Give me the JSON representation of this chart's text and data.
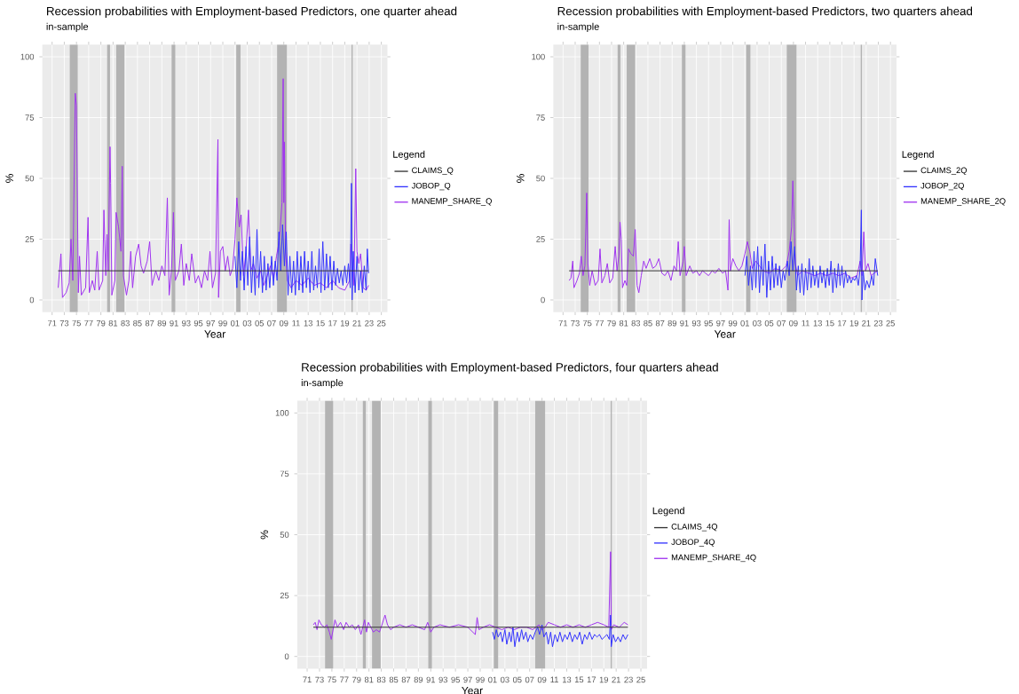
{
  "chart_data": [
    {
      "type": "line",
      "title": "Recession probabilities with Employment-based Predictors, one quarter ahead",
      "subtitle": "in-sample",
      "xlabel": "Year",
      "ylabel": "%",
      "legend_title": "Legend",
      "legend": "right",
      "grid": true,
      "xlim": [
        1969.4,
        2026
      ],
      "ylim": [
        -5,
        105
      ],
      "yticks": [
        0,
        25,
        50,
        75,
        100
      ],
      "xticks": [
        {
          "value": 1971,
          "label": "71"
        },
        {
          "value": 1973,
          "label": "73"
        },
        {
          "value": 1975,
          "label": "75"
        },
        {
          "value": 1977,
          "label": "77"
        },
        {
          "value": 1979,
          "label": "79"
        },
        {
          "value": 1981,
          "label": "81"
        },
        {
          "value": 1983,
          "label": "83"
        },
        {
          "value": 1985,
          "label": "85"
        },
        {
          "value": 1987,
          "label": "87"
        },
        {
          "value": 1989,
          "label": "89"
        },
        {
          "value": 1991,
          "label": "91"
        },
        {
          "value": 1993,
          "label": "93"
        },
        {
          "value": 1995,
          "label": "95"
        },
        {
          "value": 1997,
          "label": "97"
        },
        {
          "value": 1999,
          "label": "99"
        },
        {
          "value": 2001,
          "label": "01"
        },
        {
          "value": 2003,
          "label": "03"
        },
        {
          "value": 2005,
          "label": "05"
        },
        {
          "value": 2007,
          "label": "07"
        },
        {
          "value": 2009,
          "label": "09"
        },
        {
          "value": 2011,
          "label": "11"
        },
        {
          "value": 2013,
          "label": "13"
        },
        {
          "value": 2015,
          "label": "15"
        },
        {
          "value": 2017,
          "label": "17"
        },
        {
          "value": 2019,
          "label": "19"
        },
        {
          "value": 2021,
          "label": "21"
        },
        {
          "value": 2023,
          "label": "23"
        },
        {
          "value": 2025,
          "label": "25"
        }
      ],
      "bands": [
        {
          "axis": "x",
          "from": 1973.9,
          "to": 1975.2
        },
        {
          "axis": "x",
          "from": 1980.0,
          "to": 1980.5
        },
        {
          "axis": "x",
          "from": 1981.5,
          "to": 1982.9
        },
        {
          "axis": "x",
          "from": 1990.6,
          "to": 1991.2
        },
        {
          "axis": "x",
          "from": 2001.2,
          "to": 2001.9
        },
        {
          "axis": "x",
          "from": 2007.9,
          "to": 2009.5
        },
        {
          "axis": "x",
          "from": 2020.1,
          "to": 2020.3
        }
      ],
      "series": [
        {
          "name": "CLAIMS_Q",
          "color": "#333333",
          "x": [
            1972.0,
            2022.9
          ],
          "values": [
            12,
            12
          ]
        },
        {
          "name": "JOBOP_Q",
          "color": "#3333ff",
          "x": [
            2001.0,
            2001.3,
            2001.6,
            2001.9,
            2002.2,
            2002.5,
            2002.8,
            2003.1,
            2003.4,
            2003.7,
            2004.0,
            2004.3,
            2004.6,
            2004.9,
            2005.2,
            2005.5,
            2005.8,
            2006.1,
            2006.4,
            2006.7,
            2007.0,
            2007.3,
            2007.6,
            2007.9,
            2008.2,
            2008.5,
            2008.8,
            2009.1,
            2009.4,
            2009.7,
            2010.0,
            2010.3,
            2010.6,
            2010.9,
            2011.2,
            2011.5,
            2011.8,
            2012.1,
            2012.4,
            2012.7,
            2013.0,
            2013.3,
            2013.6,
            2013.9,
            2014.2,
            2014.5,
            2014.8,
            2015.1,
            2015.4,
            2015.7,
            2016.0,
            2016.3,
            2016.6,
            2016.9,
            2017.2,
            2017.5,
            2017.8,
            2018.1,
            2018.4,
            2018.7,
            2019.0,
            2019.3,
            2019.6,
            2019.9,
            2020.1,
            2020.2,
            2020.4,
            2020.7,
            2021.0,
            2021.3,
            2021.6,
            2021.9,
            2022.2,
            2022.5,
            2022.7,
            2022.9
          ],
          "values": [
            18,
            5,
            24,
            8,
            20,
            4,
            22,
            6,
            26,
            3,
            18,
            2,
            29,
            5,
            20,
            3,
            18,
            4,
            15,
            5,
            18,
            6,
            16,
            8,
            28,
            12,
            31,
            14,
            28,
            2,
            18,
            3,
            16,
            2,
            20,
            4,
            18,
            3,
            20,
            5,
            16,
            3,
            20,
            4,
            14,
            5,
            21,
            3,
            24,
            4,
            19,
            5,
            18,
            4,
            16,
            6,
            13,
            7,
            12,
            6,
            14,
            7,
            15,
            5,
            48,
            0,
            20,
            3,
            18,
            4,
            12,
            3,
            14,
            4,
            21,
            11
          ]
        },
        {
          "name": "MANEMP_SHARE_Q",
          "color": "#a033f0",
          "x": [
            1972.0,
            1972.45,
            1972.7,
            1973.3,
            1973.8,
            1974.1,
            1974.4,
            1974.8,
            1975.0,
            1975.3,
            1975.5,
            1975.8,
            1976.5,
            1976.9,
            1977.1,
            1977.6,
            1978.0,
            1978.4,
            1978.7,
            1979.3,
            1979.5,
            1979.8,
            1980.0,
            1980.2,
            1980.5,
            1980.6,
            1980.8,
            1981.3,
            1981.5,
            1981.9,
            1982.3,
            1982.5,
            1982.7,
            1983.2,
            1983.6,
            1983.9,
            1984.2,
            1984.7,
            1985.2,
            1985.6,
            1986.0,
            1986.6,
            1987.0,
            1987.4,
            1988.0,
            1988.5,
            1989.0,
            1989.5,
            1989.9,
            1990.2,
            1990.6,
            1990.9,
            1991.2,
            1991.8,
            1992.2,
            1992.6,
            1993.0,
            1993.5,
            1993.9,
            1994.5,
            1995.0,
            1995.5,
            1996.0,
            1996.5,
            1996.9,
            1997.3,
            1997.8,
            1998.2,
            1998.3,
            1998.6,
            1999.0,
            1999.4,
            1999.8,
            2000.2,
            2000.6,
            2001.0,
            2001.3,
            2001.7,
            2002.0,
            2002.4,
            2002.8,
            2003.2,
            2003.6,
            2004.0,
            2004.6,
            2005.2,
            2005.7,
            2006.3,
            2006.8,
            2007.3,
            2007.8,
            2008.3,
            2008.7,
            2008.9,
            2009.0,
            2009.1,
            2009.3,
            2009.6,
            2010.2,
            2011.0,
            2012.0,
            2013.0,
            2014.0,
            2015.0,
            2016.0,
            2017.0,
            2018.0,
            2019.0,
            2019.8,
            2020.0,
            2020.2,
            2020.5,
            2020.8,
            2021.0,
            2021.3,
            2021.6,
            2022.0,
            2022.5,
            2022.9
          ],
          "values": [
            5,
            19,
            1,
            3,
            7,
            25,
            8,
            85,
            80,
            3,
            18,
            2,
            5,
            34,
            3,
            8,
            4,
            20,
            4,
            8,
            37,
            10,
            27,
            12,
            63,
            48,
            2,
            8,
            36,
            30,
            20,
            55,
            10,
            2,
            8,
            20,
            5,
            18,
            23,
            14,
            11,
            16,
            24,
            6,
            12,
            8,
            14,
            10,
            42,
            2,
            13,
            36,
            8,
            12,
            23,
            6,
            15,
            8,
            19,
            7,
            10,
            5,
            12,
            8,
            20,
            5,
            11,
            66,
            1,
            20,
            22,
            12,
            18,
            10,
            13,
            25,
            42,
            30,
            35,
            10,
            20,
            37,
            12,
            15,
            9,
            12,
            6,
            10,
            14,
            9,
            18,
            25,
            40,
            91,
            40,
            65,
            20,
            8,
            5,
            8,
            6,
            9,
            6,
            7,
            5,
            8,
            5,
            4,
            8,
            23,
            18,
            6,
            54,
            20,
            15,
            19,
            5,
            4,
            6
          ]
        }
      ]
    },
    {
      "type": "line",
      "title": "Recession probabilities with Employment-based Predictors, two quarters ahead",
      "subtitle": "in-sample",
      "xlabel": "Year",
      "ylabel": "%",
      "legend_title": "Legend",
      "legend": "right",
      "grid": true,
      "xlim": [
        1969.4,
        2026
      ],
      "ylim": [
        -5,
        105
      ],
      "yticks": [
        0,
        25,
        50,
        75,
        100
      ],
      "xticks": [
        {
          "value": 1971,
          "label": "71"
        },
        {
          "value": 1973,
          "label": "73"
        },
        {
          "value": 1975,
          "label": "75"
        },
        {
          "value": 1977,
          "label": "77"
        },
        {
          "value": 1979,
          "label": "79"
        },
        {
          "value": 1981,
          "label": "81"
        },
        {
          "value": 1983,
          "label": "83"
        },
        {
          "value": 1985,
          "label": "85"
        },
        {
          "value": 1987,
          "label": "87"
        },
        {
          "value": 1989,
          "label": "89"
        },
        {
          "value": 1991,
          "label": "91"
        },
        {
          "value": 1993,
          "label": "93"
        },
        {
          "value": 1995,
          "label": "95"
        },
        {
          "value": 1997,
          "label": "97"
        },
        {
          "value": 1999,
          "label": "99"
        },
        {
          "value": 2001,
          "label": "01"
        },
        {
          "value": 2003,
          "label": "03"
        },
        {
          "value": 2005,
          "label": "05"
        },
        {
          "value": 2007,
          "label": "07"
        },
        {
          "value": 2009,
          "label": "09"
        },
        {
          "value": 2011,
          "label": "11"
        },
        {
          "value": 2013,
          "label": "13"
        },
        {
          "value": 2015,
          "label": "15"
        },
        {
          "value": 2017,
          "label": "17"
        },
        {
          "value": 2019,
          "label": "19"
        },
        {
          "value": 2021,
          "label": "21"
        },
        {
          "value": 2023,
          "label": "23"
        },
        {
          "value": 2025,
          "label": "25"
        }
      ],
      "bands": [
        {
          "axis": "x",
          "from": 1973.9,
          "to": 1975.2
        },
        {
          "axis": "x",
          "from": 1980.0,
          "to": 1980.5
        },
        {
          "axis": "x",
          "from": 1981.5,
          "to": 1982.9
        },
        {
          "axis": "x",
          "from": 1990.6,
          "to": 1991.2
        },
        {
          "axis": "x",
          "from": 2001.2,
          "to": 2001.9
        },
        {
          "axis": "x",
          "from": 2007.9,
          "to": 2009.5
        },
        {
          "axis": "x",
          "from": 2020.1,
          "to": 2020.3
        }
      ],
      "series": [
        {
          "name": "CLAIMS_2Q",
          "color": "#333333",
          "x": [
            1972.0,
            2022.9
          ],
          "values": [
            12,
            12
          ]
        },
        {
          "name": "JOBOP_2Q",
          "color": "#3333ff",
          "x": [
            2001.0,
            2001.3,
            2001.6,
            2001.9,
            2002.2,
            2002.5,
            2002.8,
            2003.1,
            2003.4,
            2003.7,
            2004.0,
            2004.3,
            2004.6,
            2004.9,
            2005.2,
            2005.5,
            2005.8,
            2006.1,
            2006.4,
            2006.7,
            2007.0,
            2007.3,
            2007.6,
            2008.0,
            2008.3,
            2008.6,
            2008.9,
            2009.2,
            2009.5,
            2009.8,
            2010.1,
            2010.4,
            2010.7,
            2011.0,
            2011.3,
            2011.6,
            2011.9,
            2012.2,
            2012.5,
            2012.8,
            2013.1,
            2013.4,
            2013.7,
            2014.0,
            2014.3,
            2014.6,
            2014.9,
            2015.2,
            2015.5,
            2015.8,
            2016.1,
            2016.4,
            2016.7,
            2017.0,
            2017.3,
            2017.6,
            2017.9,
            2018.2,
            2018.5,
            2018.8,
            2019.1,
            2019.4,
            2019.7,
            2020.0,
            2020.2,
            2020.3,
            2020.5,
            2020.8,
            2021.1,
            2021.5,
            2021.9,
            2022.2,
            2022.5,
            2022.9
          ],
          "values": [
            10,
            18,
            6,
            14,
            4,
            20,
            5,
            22,
            3,
            18,
            6,
            23,
            1,
            16,
            4,
            18,
            5,
            15,
            6,
            14,
            5,
            12,
            8,
            16,
            10,
            24,
            12,
            22,
            4,
            14,
            3,
            15,
            2,
            13,
            4,
            17,
            5,
            14,
            6,
            12,
            5,
            14,
            7,
            12,
            5,
            13,
            6,
            16,
            3,
            13,
            5,
            15,
            6,
            14,
            5,
            12,
            7,
            10,
            7,
            9,
            8,
            10,
            6,
            13,
            37,
            0,
            12,
            4,
            8,
            5,
            10,
            6,
            17,
            10
          ]
        },
        {
          "name": "MANEMP_SHARE_2Q",
          "color": "#a033f0",
          "x": [
            1972.0,
            1972.3,
            1972.6,
            1972.8,
            1973.3,
            1973.7,
            1974.0,
            1974.3,
            1974.6,
            1974.9,
            1975.1,
            1975.4,
            1975.8,
            1976.3,
            1976.8,
            1977.1,
            1977.4,
            1977.9,
            1978.3,
            1978.7,
            1979.2,
            1979.6,
            1979.9,
            1980.2,
            1980.4,
            1980.6,
            1980.8,
            1981.2,
            1981.5,
            1981.8,
            1982.2,
            1982.6,
            1982.9,
            1983.2,
            1983.5,
            1983.9,
            1984.3,
            1984.7,
            1985.3,
            1985.8,
            1986.3,
            1986.8,
            1987.3,
            1987.8,
            1988.3,
            1988.8,
            1989.3,
            1989.7,
            1990.0,
            1990.3,
            1990.8,
            1991.0,
            1991.3,
            1991.9,
            1992.4,
            1993.0,
            1993.5,
            1994.0,
            1994.5,
            1995.0,
            1995.6,
            1996.1,
            1996.7,
            1997.3,
            1997.8,
            1998.2,
            1998.4,
            1998.6,
            1999.0,
            1999.5,
            2000.0,
            2000.5,
            2001.0,
            2001.4,
            2001.8,
            2002.2,
            2002.8,
            2003.4,
            2004.0,
            2005.0,
            2006.0,
            2007.0,
            2007.8,
            2008.3,
            2008.7,
            2008.9,
            2009.1,
            2009.3,
            2009.7,
            2010.5,
            2011.5,
            2012.5,
            2013.5,
            2014.5,
            2015.5,
            2016.5,
            2017.5,
            2018.5,
            2019.5,
            2020.0,
            2020.3,
            2020.6,
            2020.9,
            2021.3,
            2021.8,
            2022.3,
            2022.9
          ],
          "values": [
            8,
            9,
            16,
            5,
            8,
            11,
            18,
            10,
            14,
            44,
            15,
            6,
            12,
            6,
            8,
            21,
            7,
            10,
            15,
            7,
            9,
            22,
            12,
            18,
            32,
            25,
            5,
            8,
            6,
            21,
            19,
            18,
            29,
            6,
            3,
            10,
            16,
            13,
            17,
            13,
            14,
            17,
            11,
            10,
            12,
            8,
            14,
            12,
            24,
            10,
            16,
            22,
            10,
            14,
            11,
            12,
            10,
            12,
            11,
            10,
            12,
            11,
            13,
            11,
            12,
            4,
            33,
            12,
            17,
            14,
            12,
            14,
            19,
            24,
            20,
            13,
            16,
            14,
            12,
            11,
            13,
            12,
            14,
            20,
            30,
            49,
            33,
            15,
            10,
            12,
            11,
            10,
            11,
            10,
            11,
            10,
            11,
            9,
            10,
            16,
            10,
            28,
            12,
            15,
            10,
            11,
            12
          ]
        }
      ]
    },
    {
      "type": "line",
      "title": "Recession probabilities with Employment-based Predictors, four quarters ahead",
      "subtitle": "in-sample",
      "xlabel": "Year",
      "ylabel": "%",
      "legend_title": "Legend",
      "legend": "right",
      "grid": true,
      "xlim": [
        1969.4,
        2026
      ],
      "ylim": [
        -5,
        105
      ],
      "yticks": [
        0,
        25,
        50,
        75,
        100
      ],
      "xticks": [
        {
          "value": 1971,
          "label": "71"
        },
        {
          "value": 1973,
          "label": "73"
        },
        {
          "value": 1975,
          "label": "75"
        },
        {
          "value": 1977,
          "label": "77"
        },
        {
          "value": 1979,
          "label": "79"
        },
        {
          "value": 1981,
          "label": "81"
        },
        {
          "value": 1983,
          "label": "83"
        },
        {
          "value": 1985,
          "label": "85"
        },
        {
          "value": 1987,
          "label": "87"
        },
        {
          "value": 1989,
          "label": "89"
        },
        {
          "value": 1991,
          "label": "91"
        },
        {
          "value": 1993,
          "label": "93"
        },
        {
          "value": 1995,
          "label": "95"
        },
        {
          "value": 1997,
          "label": "97"
        },
        {
          "value": 1999,
          "label": "99"
        },
        {
          "value": 2001,
          "label": "01"
        },
        {
          "value": 2003,
          "label": "03"
        },
        {
          "value": 2005,
          "label": "05"
        },
        {
          "value": 2007,
          "label": "07"
        },
        {
          "value": 2009,
          "label": "09"
        },
        {
          "value": 2011,
          "label": "11"
        },
        {
          "value": 2013,
          "label": "13"
        },
        {
          "value": 2015,
          "label": "15"
        },
        {
          "value": 2017,
          "label": "17"
        },
        {
          "value": 2019,
          "label": "19"
        },
        {
          "value": 2021,
          "label": "21"
        },
        {
          "value": 2023,
          "label": "23"
        },
        {
          "value": 2025,
          "label": "25"
        }
      ],
      "bands": [
        {
          "axis": "x",
          "from": 1973.9,
          "to": 1975.2
        },
        {
          "axis": "x",
          "from": 1980.0,
          "to": 1980.5
        },
        {
          "axis": "x",
          "from": 1981.5,
          "to": 1982.9
        },
        {
          "axis": "x",
          "from": 1990.6,
          "to": 1991.2
        },
        {
          "axis": "x",
          "from": 2001.2,
          "to": 2001.9
        },
        {
          "axis": "x",
          "from": 2007.9,
          "to": 2009.5
        },
        {
          "axis": "x",
          "from": 2020.1,
          "to": 2020.3
        }
      ],
      "series": [
        {
          "name": "CLAIMS_4Q",
          "color": "#333333",
          "x": [
            1972.0,
            2022.9
          ],
          "values": [
            12,
            12
          ]
        },
        {
          "name": "JOBOP_4Q",
          "color": "#3333ff",
          "x": [
            2001.0,
            2001.3,
            2001.6,
            2001.9,
            2002.3,
            2002.6,
            2003.0,
            2003.3,
            2003.7,
            2004.0,
            2004.3,
            2004.6,
            2005.0,
            2005.3,
            2005.7,
            2006.0,
            2006.4,
            2006.7,
            2007.1,
            2007.5,
            2007.9,
            2008.3,
            2008.6,
            2009.0,
            2009.3,
            2009.7,
            2010.0,
            2010.4,
            2010.7,
            2011.1,
            2011.5,
            2011.9,
            2012.3,
            2012.7,
            2013.1,
            2013.5,
            2013.9,
            2014.3,
            2014.7,
            2015.1,
            2015.5,
            2015.9,
            2016.3,
            2016.7,
            2017.1,
            2017.5,
            2017.9,
            2018.3,
            2018.7,
            2019.1,
            2019.5,
            2019.9,
            2020.1,
            2020.2,
            2020.5,
            2020.9,
            2021.3,
            2021.7,
            2022.1,
            2022.5,
            2022.9
          ],
          "values": [
            10,
            7,
            11,
            8,
            10,
            6,
            11,
            5,
            10,
            6,
            12,
            4,
            10,
            6,
            11,
            7,
            10,
            6,
            9,
            7,
            10,
            12,
            9,
            13,
            8,
            10,
            5,
            10,
            4,
            9,
            6,
            10,
            6,
            9,
            7,
            10,
            6,
            9,
            7,
            10,
            5,
            9,
            7,
            10,
            7,
            9,
            8,
            9,
            7,
            8,
            9,
            7,
            17,
            4,
            9,
            6,
            8,
            6,
            9,
            7,
            9
          ]
        },
        {
          "name": "MANEMP_SHARE_4Q",
          "color": "#a033f0",
          "x": [
            1972.0,
            1972.3,
            1972.6,
            1972.9,
            1973.3,
            1973.8,
            1974.2,
            1974.6,
            1974.9,
            1975.2,
            1975.5,
            1975.9,
            1976.4,
            1976.9,
            1977.3,
            1977.8,
            1978.3,
            1978.8,
            1979.3,
            1979.7,
            1980.0,
            1980.3,
            1980.6,
            1980.9,
            1981.3,
            1981.7,
            1982.2,
            1982.7,
            1983.1,
            1983.6,
            1984.0,
            1984.5,
            1985.0,
            1986.0,
            1987.0,
            1988.0,
            1989.0,
            1990.0,
            1990.5,
            1991.0,
            1991.5,
            1992.5,
            1994.0,
            1995.5,
            1997.0,
            1998.2,
            1998.5,
            1998.8,
            1999.5,
            2000.5,
            2001.5,
            2002.5,
            2003.5,
            2004.5,
            2005.5,
            2006.5,
            2007.5,
            2008.5,
            2009.0,
            2009.5,
            2010.0,
            2011.0,
            2012.0,
            2013.0,
            2014.0,
            2015.0,
            2016.0,
            2017.0,
            2018.0,
            2019.0,
            2019.8,
            2020.1,
            2020.2,
            2020.6,
            2021.5,
            2022.3,
            2022.9
          ],
          "values": [
            13,
            14,
            11,
            15,
            13,
            12,
            13,
            10,
            7,
            11,
            15,
            12,
            14,
            11,
            14,
            12,
            13,
            11,
            13,
            9,
            12,
            15,
            10,
            14,
            12,
            10,
            11,
            10,
            13,
            17,
            13,
            11,
            12,
            13,
            12,
            13,
            12,
            11,
            14,
            10,
            12,
            13,
            12,
            13,
            12,
            9,
            16,
            11,
            12,
            13,
            12,
            11,
            12,
            11,
            12,
            12,
            11,
            13,
            11,
            12,
            14,
            13,
            12,
            13,
            12,
            13,
            12,
            13,
            14,
            13,
            12,
            43,
            11,
            13,
            12,
            14,
            13
          ]
        }
      ]
    }
  ]
}
